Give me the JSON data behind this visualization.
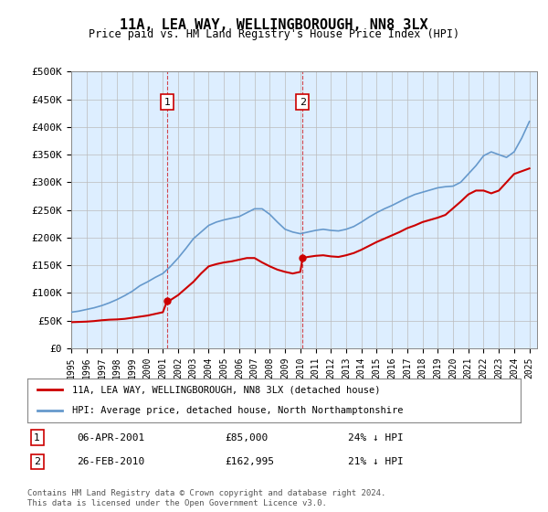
{
  "title": "11A, LEA WAY, WELLINGBOROUGH, NN8 3LX",
  "subtitle": "Price paid vs. HM Land Registry's House Price Index (HPI)",
  "footer_line1": "Contains HM Land Registry data © Crown copyright and database right 2024.",
  "footer_line2": "This data is licensed under the Open Government Licence v3.0.",
  "legend_entry1": "11A, LEA WAY, WELLINGBOROUGH, NN8 3LX (detached house)",
  "legend_entry2": "HPI: Average price, detached house, North Northamptonshire",
  "marker1_label": "1",
  "marker1_date": "06-APR-2001",
  "marker1_price": "£85,000",
  "marker1_hpi": "24% ↓ HPI",
  "marker2_label": "2",
  "marker2_date": "26-FEB-2010",
  "marker2_price": "£162,995",
  "marker2_hpi": "21% ↓ HPI",
  "hpi_color": "#6699cc",
  "price_color": "#cc0000",
  "marker_box_color": "#cc0000",
  "bg_color": "#ddeeff",
  "ylim": [
    0,
    500000
  ],
  "ytick_values": [
    0,
    50000,
    100000,
    150000,
    200000,
    250000,
    300000,
    350000,
    400000,
    450000,
    500000
  ],
  "ytick_labels": [
    "£0",
    "£50K",
    "£100K",
    "£150K",
    "£200K",
    "£250K",
    "£300K",
    "£350K",
    "£400K",
    "£450K",
    "£500K"
  ],
  "xlim_start": 1995.0,
  "xlim_end": 2025.5,
  "marker1_x": 2001.27,
  "marker2_x": 2010.15,
  "hpi_x": [
    1995,
    1995.5,
    1996,
    1996.5,
    1997,
    1997.5,
    1998,
    1998.5,
    1999,
    1999.5,
    2000,
    2000.5,
    2001,
    2001.5,
    2002,
    2002.5,
    2003,
    2003.5,
    2004,
    2004.5,
    2005,
    2005.5,
    2006,
    2006.5,
    2007,
    2007.5,
    2008,
    2008.5,
    2009,
    2009.5,
    2010,
    2010.5,
    2011,
    2011.5,
    2012,
    2012.5,
    2013,
    2013.5,
    2014,
    2014.5,
    2015,
    2015.5,
    2016,
    2016.5,
    2017,
    2017.5,
    2018,
    2018.5,
    2019,
    2019.5,
    2020,
    2020.5,
    2021,
    2021.5,
    2022,
    2022.5,
    2023,
    2023.5,
    2024,
    2024.5,
    2025
  ],
  "hpi_y": [
    65000,
    67000,
    70000,
    73000,
    77000,
    82000,
    88000,
    95000,
    103000,
    113000,
    120000,
    128000,
    135000,
    148000,
    163000,
    180000,
    198000,
    210000,
    222000,
    228000,
    232000,
    235000,
    238000,
    245000,
    252000,
    252000,
    242000,
    228000,
    215000,
    210000,
    207000,
    210000,
    213000,
    215000,
    213000,
    212000,
    215000,
    220000,
    228000,
    237000,
    245000,
    252000,
    258000,
    265000,
    272000,
    278000,
    282000,
    286000,
    290000,
    292000,
    293000,
    300000,
    315000,
    330000,
    348000,
    355000,
    350000,
    345000,
    355000,
    380000,
    410000
  ],
  "price_x": [
    1995,
    1995.5,
    1996,
    1996.5,
    1997,
    1997.5,
    1998,
    1998.5,
    1999,
    1999.5,
    2000,
    2000.5,
    2001,
    2001.27,
    2001.5,
    2002,
    2002.5,
    2003,
    2003.5,
    2004,
    2004.5,
    2005,
    2005.5,
    2006,
    2006.5,
    2007,
    2007.5,
    2008,
    2008.5,
    2009,
    2009.5,
    2010,
    2010.15,
    2010.5,
    2011,
    2011.5,
    2012,
    2012.5,
    2013,
    2013.5,
    2014,
    2014.5,
    2015,
    2015.5,
    2016,
    2016.5,
    2017,
    2017.5,
    2018,
    2018.5,
    2019,
    2019.5,
    2020,
    2020.5,
    2021,
    2021.5,
    2022,
    2022.5,
    2023,
    2023.5,
    2024,
    2024.5,
    2025
  ],
  "price_y": [
    47000,
    47500,
    48000,
    49000,
    50500,
    51500,
    52000,
    53000,
    55000,
    57000,
    59000,
    62000,
    65000,
    85000,
    87000,
    96000,
    108000,
    120000,
    135000,
    148000,
    152000,
    155000,
    157000,
    160000,
    163000,
    163000,
    155000,
    148000,
    142000,
    138000,
    135000,
    138000,
    162995,
    165000,
    167000,
    168000,
    166000,
    165000,
    168000,
    172000,
    178000,
    185000,
    192000,
    198000,
    204000,
    210000,
    217000,
    222000,
    228000,
    232000,
    236000,
    241000,
    253000,
    265000,
    278000,
    285000,
    285000,
    280000,
    285000,
    300000,
    315000,
    320000,
    325000
  ]
}
